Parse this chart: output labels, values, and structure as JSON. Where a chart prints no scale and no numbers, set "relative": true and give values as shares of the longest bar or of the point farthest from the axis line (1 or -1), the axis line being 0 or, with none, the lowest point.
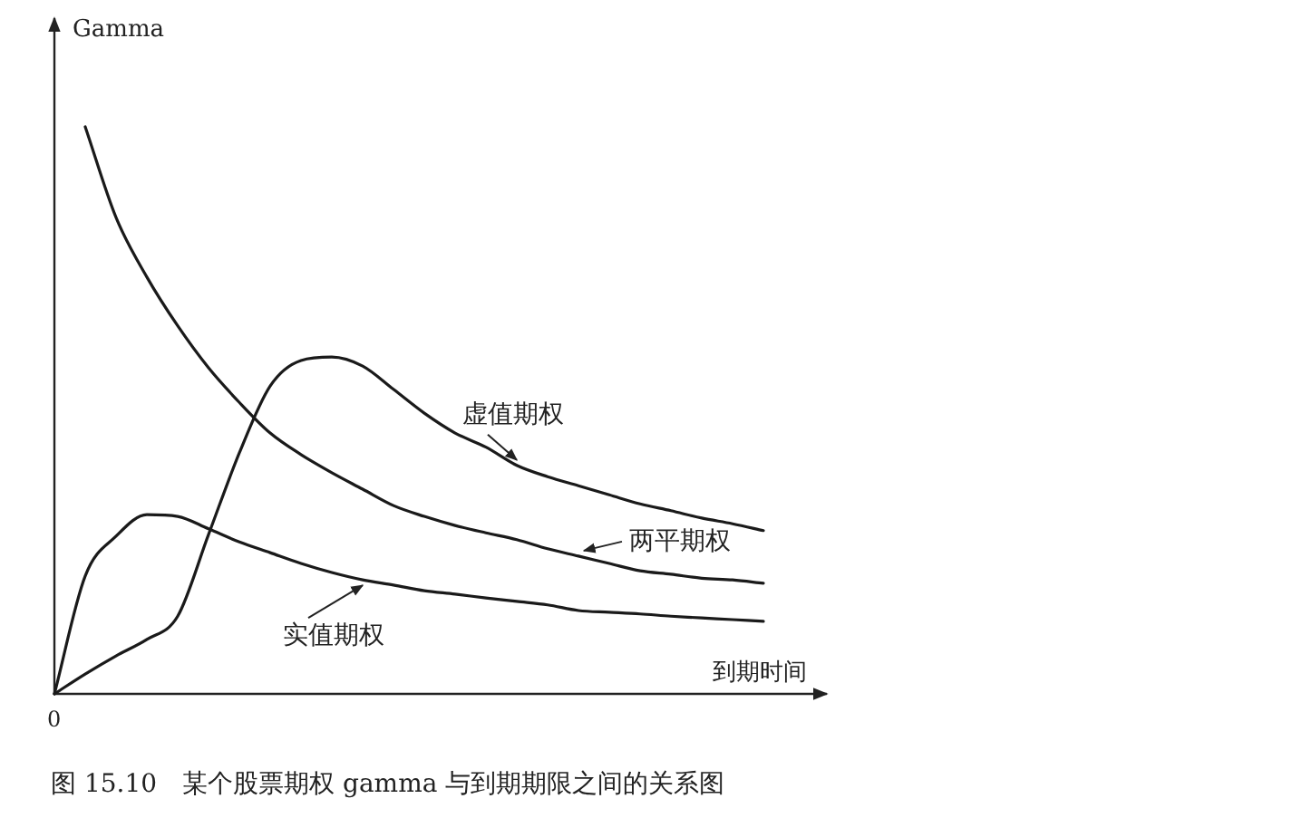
{
  "chart_data": {
    "type": "line",
    "title": "图 15.10　某个股票期权 gamma 与到期期限之间的关系图",
    "xlabel": "到期时间",
    "ylabel": "Gamma",
    "annotations": [
      "0"
    ],
    "relative": true,
    "marker": "none",
    "line_style": "solid",
    "categories": [
      null,
      null,
      null,
      null,
      null,
      null,
      null,
      null,
      null,
      null,
      null,
      null,
      null,
      null,
      null,
      null,
      null,
      null,
      null,
      null,
      null,
      null,
      null,
      null
    ],
    "series": [
      {
        "name": "虚值期权",
        "color": "#1a1a1a",
        "values": [
          0,
          0.035,
          0.067,
          0.096,
          0.137,
          0.281,
          0.425,
          0.543,
          0.588,
          0.594,
          0.578,
          0.537,
          0.495,
          0.46,
          0.435,
          0.403,
          0.383,
          0.367,
          0.351,
          0.335,
          0.323,
          0.31,
          0.3,
          0.288
        ]
      },
      {
        "name": "两平期权",
        "color": "#1a1a1a",
        "values": [
          null,
          1.0,
          0.84,
          0.735,
          0.649,
          0.575,
          0.514,
          0.46,
          0.422,
          0.39,
          0.361,
          0.332,
          0.313,
          0.297,
          0.284,
          0.272,
          0.256,
          0.243,
          0.23,
          0.217,
          0.211,
          0.204,
          0.201,
          0.195
        ]
      },
      {
        "name": "实值期权",
        "color": "#1a1a1a",
        "values": [
          0,
          0.208,
          0.278,
          0.316,
          0.313,
          0.291,
          0.268,
          0.249,
          0.23,
          0.214,
          0.201,
          0.192,
          0.182,
          0.176,
          0.169,
          0.163,
          0.157,
          0.147,
          0.144,
          0.141,
          0.137,
          0.134,
          0.131,
          0.128
        ]
      }
    ]
  }
}
